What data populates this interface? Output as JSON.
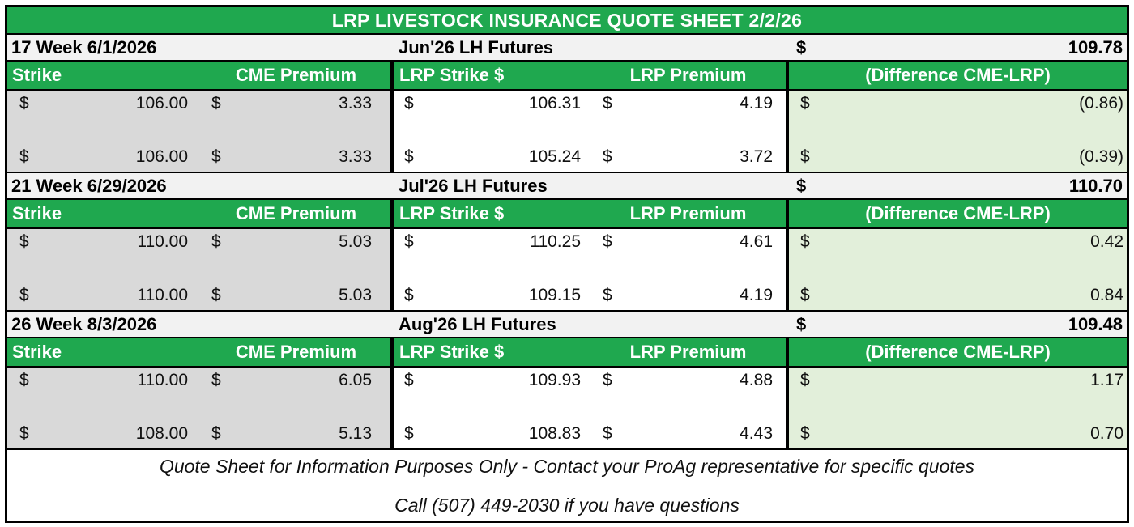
{
  "title": "LRP LIVESTOCK INSURANCE QUOTE SHEET 2/2/26",
  "currency": "$",
  "columns": [
    "Strike",
    "CME Premium",
    "LRP Strike $",
    "LRP Premium",
    "(Difference CME-LRP)"
  ],
  "sections": [
    {
      "week_label": "17 Week 6/1/2026",
      "futures_label": "Jun'26 LH Futures",
      "futures_price": "109.78",
      "rows": [
        {
          "strike": "106.00",
          "cme_premium": "3.33",
          "lrp_strike": "106.31",
          "lrp_premium": "4.19",
          "difference": "(0.86)"
        },
        {
          "strike": "106.00",
          "cme_premium": "3.33",
          "lrp_strike": "105.24",
          "lrp_premium": "3.72",
          "difference": "(0.39)"
        }
      ]
    },
    {
      "week_label": "21 Week 6/29/2026",
      "futures_label": "Jul'26 LH Futures",
      "futures_price": "110.70",
      "rows": [
        {
          "strike": "110.00",
          "cme_premium": "5.03",
          "lrp_strike": "110.25",
          "lrp_premium": "4.61",
          "difference": "0.42"
        },
        {
          "strike": "110.00",
          "cme_premium": "5.03",
          "lrp_strike": "109.15",
          "lrp_premium": "4.19",
          "difference": "0.84"
        }
      ]
    },
    {
      "week_label": "26 Week 8/3/2026",
      "futures_label": "Aug'26 LH Futures",
      "futures_price": "109.48",
      "rows": [
        {
          "strike": "110.00",
          "cme_premium": "6.05",
          "lrp_strike": "109.93",
          "lrp_premium": "4.88",
          "difference": "1.17"
        },
        {
          "strike": "108.00",
          "cme_premium": "5.13",
          "lrp_strike": "108.83",
          "lrp_premium": "4.43",
          "difference": "0.70"
        }
      ]
    }
  ],
  "footer": {
    "line1": "Quote Sheet for Information Purposes Only - Contact your ProAg representative for specific quotes",
    "line2": "Call (507) 449-2030 if you have questions"
  },
  "colors": {
    "header_green": "#1FA84F",
    "strike_band_gray": "#D9D9D9",
    "difference_band_green": "#E2EFDA",
    "week_row_gray": "#F2F2F2",
    "border_black": "#000000",
    "header_text": "#FFFFFF"
  }
}
